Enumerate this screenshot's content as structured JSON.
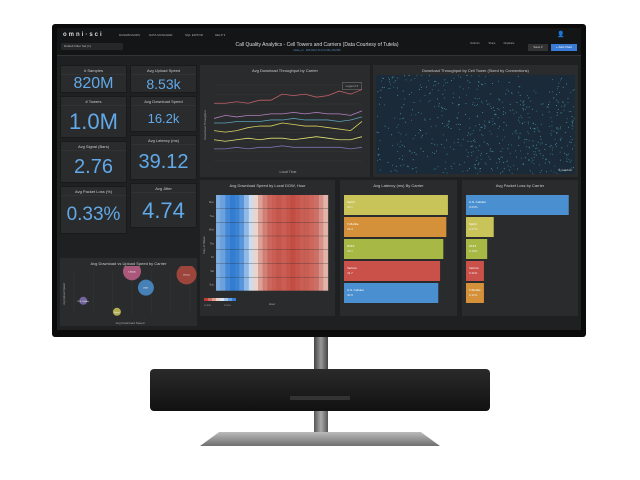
{
  "header": {
    "logo": "omni·sci",
    "nav": [
      "DASHBOARDS",
      "DATA MANAGER",
      "SQL EDITOR",
      "HELP ▾"
    ],
    "filter_label": "Default Filter Set (1)",
    "title": "Call Quality Analytics - Cell Towers and Carriers (Data Courtesy of Tutela)",
    "subtitle": "tutela_xx · 820,043,170 of 3,331,240,565",
    "tools": [
      "Refresh",
      "Share",
      "Duplicate"
    ],
    "save": "Save ▾",
    "add_chart": "+ Add Chart"
  },
  "kpis": [
    {
      "label": "# Samples",
      "value": "820M"
    },
    {
      "label": "Avg Upload Speed",
      "value": "8.53k"
    },
    {
      "label": "# Towers",
      "value": "1.0M"
    },
    {
      "label": "Avg Download Speed",
      "value": "16.2k"
    },
    {
      "label": "Avg Signal (Bars)",
      "value": "2.76"
    },
    {
      "label": "Avg Latency (ms)",
      "value": "39.12"
    },
    {
      "label": "Avg Packet Loss (%)",
      "value": "0.33%"
    },
    {
      "label": "Avg Jitter",
      "value": "4.74"
    }
  ],
  "line_chart": {
    "title": "Avg Download Throughput by Carrier",
    "xlabel": "Local Time",
    "ylabel": "Download Throughput",
    "legend_button": "Legend ▾",
    "colors": [
      "#c0606a",
      "#b080c0",
      "#5aa0b8",
      "#d8d060",
      "#e0e070",
      "#8070b0"
    ],
    "series": [
      [
        38,
        38,
        39,
        38,
        40,
        40,
        44,
        43,
        44,
        42,
        43,
        46,
        44,
        47
      ],
      [
        28,
        30,
        29,
        30,
        30,
        31,
        31,
        32,
        31,
        32,
        31,
        31,
        30,
        33
      ],
      [
        25,
        25,
        26,
        26,
        26,
        27,
        27,
        28,
        27,
        27,
        27,
        26,
        27,
        29
      ],
      [
        20,
        19,
        20,
        22,
        23,
        23,
        25,
        24,
        23,
        23,
        22,
        21,
        20,
        26
      ],
      [
        14,
        13,
        14,
        15,
        14,
        15,
        15,
        14,
        15,
        16,
        15,
        14,
        14,
        16
      ],
      [
        8,
        8,
        9,
        8,
        9,
        9,
        10,
        9,
        9,
        9,
        9,
        9,
        8,
        9
      ]
    ]
  },
  "map": {
    "title": "Download Throughput by Cell Tower (Sized by Connections)",
    "attribution": "© mapbox"
  },
  "heatmap": {
    "title": "Avg Download Speed by Local DOW, Hour",
    "xlabel": "Hour",
    "ylabel": "Day of Week",
    "rows": [
      "Mon",
      "Tue",
      "Wed",
      "Thu",
      "Fri",
      "Sat",
      "Sun"
    ],
    "hour_profile": [
      -0.6,
      -0.7,
      -0.9,
      -1,
      -0.95,
      -0.8,
      -0.5,
      -0.2,
      0.1,
      0.4,
      0.6,
      0.75,
      0.8,
      0.85,
      0.8,
      0.85,
      0.9,
      0.85,
      0.8,
      0.8,
      0.75,
      0.7,
      0.5,
      0.3
    ],
    "legend_min": "15,938",
    "legend_max": "22,001"
  },
  "latency": {
    "title": "Avg Latency (ms) By Carrier",
    "bars": [
      {
        "name": "Sprint",
        "value": 45.1,
        "color": "#c8c45a"
      },
      {
        "name": "T-Mobile",
        "value": 44.4,
        "color": "#d4913a"
      },
      {
        "name": "AT&T",
        "value": 43.1,
        "color": "#a8b845"
      },
      {
        "name": "Verizon",
        "value": 41.7,
        "color": "#c9514a"
      },
      {
        "name": "U.S. Cellular",
        "value": 40.9,
        "color": "#4a90d0"
      }
    ],
    "max": 46
  },
  "packet_loss": {
    "title": "Avg Packet Loss by Carrier",
    "bars": [
      {
        "name": "U.S. Cellular",
        "value": 0.63,
        "color": "#4a90d0"
      },
      {
        "name": "Sprint",
        "value": 0.17,
        "color": "#c8c45a"
      },
      {
        "name": "AT&T",
        "value": 0.13,
        "color": "#a8b845"
      },
      {
        "name": "Verizon",
        "value": 0.11,
        "color": "#c9514a"
      },
      {
        "name": "T-Mobile",
        "value": 0.11,
        "color": "#d4913a"
      }
    ],
    "max": 0.65
  },
  "bubble": {
    "title": "Avg Download vs Upload Speed by Carrier",
    "xlabel": "Avg Download Speed",
    "ylabel": "Avg Upload Speed",
    "points": [
      {
        "name": "U.S. Cellular",
        "x": 0.08,
        "y": 0.3,
        "r": 4,
        "color": "#8070b0"
      },
      {
        "name": "T-Mobile",
        "x": 0.5,
        "y": 0.97,
        "r": 9,
        "color": "#c0608a"
      },
      {
        "name": "AT&T",
        "x": 0.62,
        "y": 0.6,
        "r": 8,
        "color": "#4a90d0"
      },
      {
        "name": "Verizon",
        "x": 0.97,
        "y": 0.9,
        "r": 10,
        "color": "#b04a40"
      },
      {
        "name": "Sprint",
        "x": 0.37,
        "y": 0.05,
        "r": 4,
        "color": "#c8c45a"
      }
    ]
  }
}
